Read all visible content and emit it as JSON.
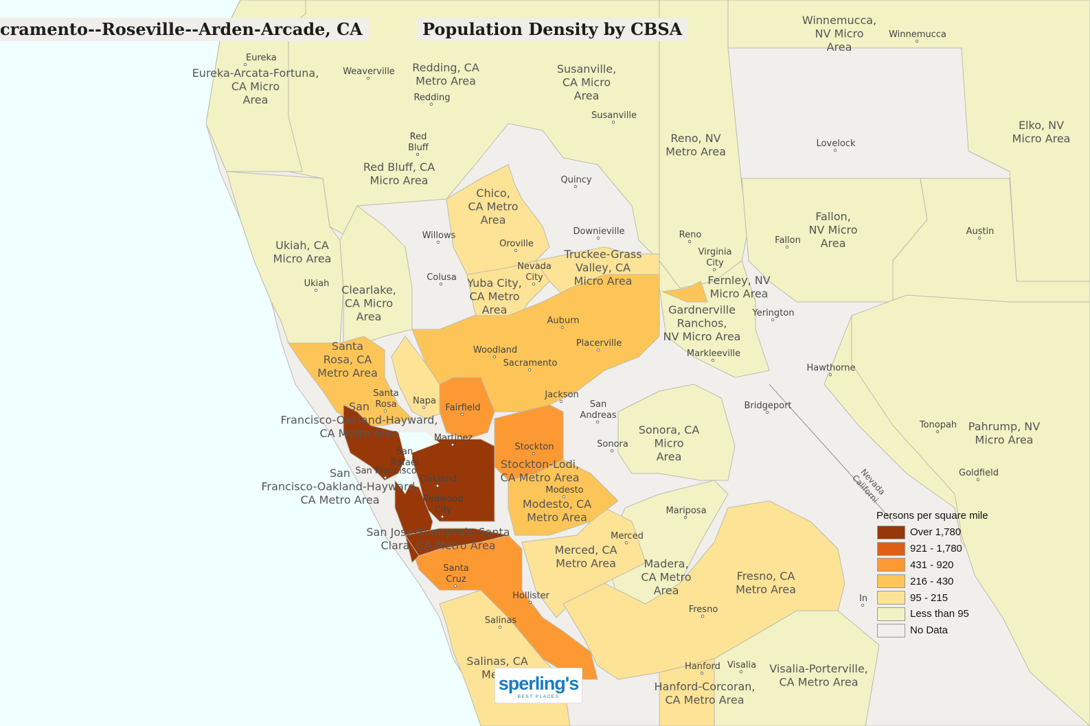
{
  "title_left": "cramento--Roseville--Arden-Arcade, CA",
  "title_right": "Population Density by CBSA",
  "colors": {
    "ocean": "#f0ffff",
    "over_1780": "#983808",
    "c921_1780": "#dd6016",
    "c431_920": "#fd9933",
    "c216_430": "#fdc557",
    "c95_215": "#fde396",
    "lt95": "#f2f2c4",
    "no_data": "#f0efeb",
    "border": "#bdbbb0"
  },
  "legend": {
    "title": "Persons per square mile",
    "items": [
      {
        "label": "Over 1,780",
        "color": "#983808"
      },
      {
        "label": "921 - 1,780",
        "color": "#dd6016"
      },
      {
        "label": "431 - 920",
        "color": "#fd9933"
      },
      {
        "label": "216 - 430",
        "color": "#fdc557"
      },
      {
        "label": "95 - 215",
        "color": "#fde396"
      },
      {
        "label": "Less than 95",
        "color": "#f2f2c4"
      },
      {
        "label": "No Data",
        "color": "#f0efeb"
      }
    ]
  },
  "area_labels": [
    {
      "lines": [
        "Eureka-Arcata-Fortuna,",
        "CA Micro",
        "Area"
      ]
    },
    {
      "lines": [
        "Redding, CA",
        "Metro Area"
      ]
    },
    {
      "lines": [
        "Susanville,",
        "CA Micro",
        "Area"
      ]
    },
    {
      "lines": [
        "Winnemucca,",
        "NV Micro",
        "Area"
      ]
    },
    {
      "lines": [
        "Elko, NV",
        "Micro Area"
      ]
    },
    {
      "lines": [
        "Reno, NV",
        "Metro Area"
      ]
    },
    {
      "lines": [
        "Red Bluff, CA",
        "Micro Area"
      ]
    },
    {
      "lines": [
        "Chico,",
        "CA Metro",
        "Area"
      ]
    },
    {
      "lines": [
        "Fallon,",
        "NV Micro",
        "Area"
      ]
    },
    {
      "lines": [
        "Ukiah, CA",
        "Micro Area"
      ]
    },
    {
      "lines": [
        "Truckee-Grass",
        "Valley, CA",
        "Micro Area"
      ]
    },
    {
      "lines": [
        "Fernley, NV",
        "Micro Area"
      ]
    },
    {
      "lines": [
        "Clearlake,",
        "CA Micro",
        "Area"
      ]
    },
    {
      "lines": [
        "Yuba City,",
        "CA Metro",
        "Area"
      ]
    },
    {
      "lines": [
        "Gardnerville",
        "Ranchos,",
        "NV Micro Area"
      ]
    },
    {
      "lines": [
        "Santa",
        "Rosa, CA",
        "Metro Area"
      ]
    },
    {
      "lines": [
        "San",
        "Francisco-Oakland-Hayward,",
        "CA Metro Area"
      ]
    },
    {
      "lines": [
        "Sonora, CA",
        "Micro",
        "Area"
      ]
    },
    {
      "lines": [
        "Pahrump, NV",
        "Micro Area"
      ]
    },
    {
      "lines": [
        "Stockton-Lodi,",
        "CA Metro Area"
      ]
    },
    {
      "lines": [
        "San",
        "Francisco-Oakland-Hayward,",
        "CA Metro Area"
      ]
    },
    {
      "lines": [
        "Modesto, CA",
        "Metro Area"
      ]
    },
    {
      "lines": [
        "San Jose-Sunnyvale-Santa",
        "Clara, CA Metro Area"
      ]
    },
    {
      "lines": [
        "Merced, CA",
        "Metro Area"
      ]
    },
    {
      "lines": [
        "Madera,",
        "CA Metro",
        "Area"
      ]
    },
    {
      "lines": [
        "Fresno, CA",
        "Metro Area"
      ]
    },
    {
      "lines": [
        "Salinas, CA",
        "Metro"
      ]
    },
    {
      "lines": [
        "Hanford-Corcoran,",
        "CA Metro Area"
      ]
    },
    {
      "lines": [
        "Visalia-Porterville,",
        "CA Metro Area"
      ]
    }
  ],
  "city_labels": [
    {
      "lines": [
        "Eureka"
      ]
    },
    {
      "lines": [
        "Weaverville"
      ]
    },
    {
      "lines": [
        "Redding"
      ]
    },
    {
      "lines": [
        "Susanville"
      ]
    },
    {
      "lines": [
        "Winnemucca"
      ]
    },
    {
      "lines": [
        "Red",
        "Bluff"
      ]
    },
    {
      "lines": [
        "Lovelock"
      ]
    },
    {
      "lines": [
        "Quincy"
      ]
    },
    {
      "lines": [
        "Downieville"
      ]
    },
    {
      "lines": [
        "Willows"
      ]
    },
    {
      "lines": [
        "Oroville"
      ]
    },
    {
      "lines": [
        "Reno"
      ]
    },
    {
      "lines": [
        "Virginia",
        "City"
      ]
    },
    {
      "lines": [
        "Fallon"
      ]
    },
    {
      "lines": [
        "Austin"
      ]
    },
    {
      "lines": [
        "Nevada",
        "City"
      ]
    },
    {
      "lines": [
        "Colusa"
      ]
    },
    {
      "lines": [
        "Ukiah"
      ]
    },
    {
      "lines": [
        "Yerington"
      ]
    },
    {
      "lines": [
        "Auburn"
      ]
    },
    {
      "lines": [
        "Placerville"
      ]
    },
    {
      "lines": [
        "Woodland"
      ]
    },
    {
      "lines": [
        "Markleeville"
      ]
    },
    {
      "lines": [
        "Sacramento"
      ]
    },
    {
      "lines": [
        "Hawthorne"
      ]
    },
    {
      "lines": [
        "Santa",
        "Rosa"
      ]
    },
    {
      "lines": [
        "Napa"
      ]
    },
    {
      "lines": [
        "Jackson"
      ]
    },
    {
      "lines": [
        "San",
        "Andreas"
      ]
    },
    {
      "lines": [
        "Fairfield"
      ]
    },
    {
      "lines": [
        "Bridgeport"
      ]
    },
    {
      "lines": [
        "Tonopah"
      ]
    },
    {
      "lines": [
        "Martinez"
      ]
    },
    {
      "lines": [
        "Sonora"
      ]
    },
    {
      "lines": [
        "Stockton"
      ]
    },
    {
      "lines": [
        "San",
        "Rafael"
      ]
    },
    {
      "lines": [
        "San Francisco"
      ]
    },
    {
      "lines": [
        "Oakland"
      ]
    },
    {
      "lines": [
        "Goldfield"
      ]
    },
    {
      "lines": [
        "Modesto"
      ]
    },
    {
      "lines": [
        "Redwood",
        "City"
      ]
    },
    {
      "lines": [
        "Mariposa"
      ]
    },
    {
      "lines": [
        "Merced"
      ]
    },
    {
      "lines": [
        "Santa",
        "Cruz"
      ]
    },
    {
      "lines": [
        "Hollister"
      ]
    },
    {
      "lines": [
        "In"
      ]
    },
    {
      "lines": [
        "Fresno"
      ]
    },
    {
      "lines": [
        "Salinas"
      ]
    },
    {
      "lines": [
        "Hanford"
      ]
    },
    {
      "lines": [
        "Visalia"
      ]
    }
  ],
  "state_line_label": {
    "lines": [
      "Nevada",
      "Californi"
    ]
  },
  "logo": {
    "word": "sperling's",
    "tagline": "BEST PLACES"
  }
}
